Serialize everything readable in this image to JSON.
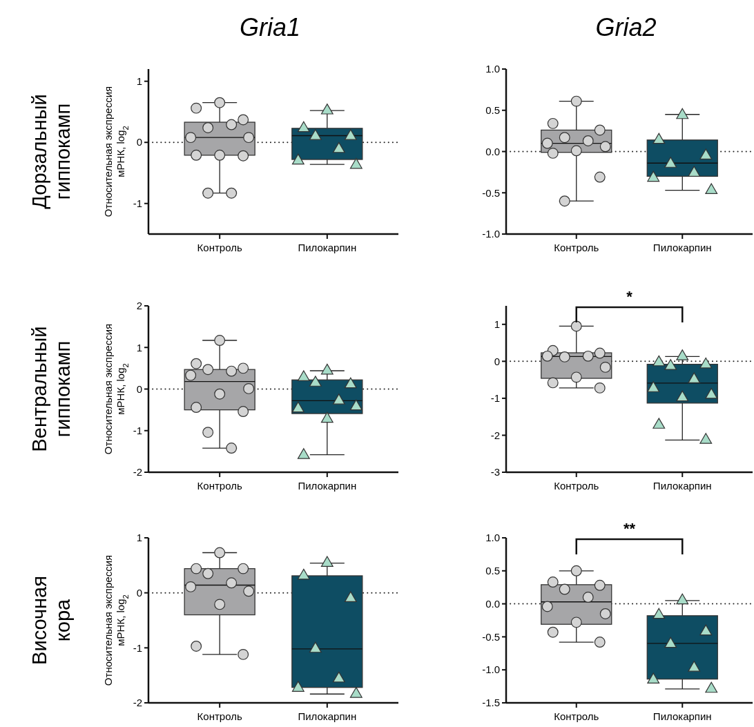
{
  "chart_data": [
    {
      "type": "box",
      "title": "Gria1",
      "ylabel": "Относительная экспрессия мРНК, log$_{2}$",
      "annotations": [
        "Дорзальный гиппокамп"
      ],
      "categories": [
        "Контроль",
        "Пилокарпин"
      ],
      "colors": [
        "#a6a6a8",
        "#0e4d63"
      ],
      "boxes": [
        {
          "low": -0.83,
          "q1": -0.21,
          "median": 0.08,
          "q3": 0.33,
          "high": 0.65
        },
        {
          "low": -0.36,
          "q1": -0.28,
          "median": 0.11,
          "q3": 0.23,
          "high": 0.52
        }
      ],
      "series": [
        {
          "type": "scatter",
          "marker": "circle",
          "color": "#d4d4d4",
          "x": [
            "Контроль",
            "Контроль",
            "Контроль",
            "Контроль",
            "Контроль",
            "Контроль",
            "Контроль",
            "Контроль",
            "Контроль",
            "Контроль",
            "Контроль",
            "Контроль"
          ],
          "values": [
            0.65,
            0.56,
            0.37,
            0.24,
            0.29,
            0.08,
            0.08,
            -0.21,
            -0.21,
            -0.22,
            -0.83,
            -0.83
          ]
        },
        {
          "type": "scatter",
          "marker": "triangle",
          "color": "#a8dcc8",
          "x": [
            "Пилокарпин",
            "Пилокарпин",
            "Пилокарпин",
            "Пилокарпин",
            "Пилокарпин",
            "Пилокарпин",
            "Пилокарпин"
          ],
          "values": [
            0.52,
            0.23,
            0.1,
            0.1,
            -0.11,
            -0.3,
            -0.37
          ]
        }
      ],
      "ylim": [
        -1.5,
        1.2
      ],
      "yticks": [
        -1,
        0,
        1
      ],
      "ref_lines": [
        {
          "axis": "y",
          "value": 0,
          "line_style": "dotted"
        }
      ]
    },
    {
      "type": "box",
      "title": "Gria2",
      "categories": [
        "Контроль",
        "Пилокарпин"
      ],
      "colors": [
        "#a6a6a8",
        "#0e4d63"
      ],
      "boxes": [
        {
          "low": -0.6,
          "q1": -0.01,
          "median": 0.1,
          "q3": 0.26,
          "high": 0.61
        },
        {
          "low": -0.47,
          "q1": -0.3,
          "median": -0.14,
          "q3": 0.14,
          "high": 0.45
        }
      ],
      "series": [
        {
          "type": "scatter",
          "marker": "circle",
          "color": "#d4d4d4",
          "x": [
            "Контроль",
            "Контроль",
            "Контроль",
            "Контроль",
            "Контроль",
            "Контроль",
            "Контроль",
            "Контроль",
            "Контроль",
            "Контроль",
            "Контроль"
          ],
          "values": [
            0.61,
            0.34,
            0.26,
            0.17,
            0.13,
            0.1,
            0.06,
            0.01,
            -0.02,
            -0.31,
            -0.6
          ]
        },
        {
          "type": "scatter",
          "marker": "triangle",
          "color": "#a8dcc8",
          "x": [
            "Пилокарпин",
            "Пилокарпин",
            "Пилокарпин",
            "Пилокарпин",
            "Пилокарпин",
            "Пилокарпин",
            "Пилокарпин"
          ],
          "values": [
            0.44,
            0.14,
            -0.05,
            -0.15,
            -0.26,
            -0.32,
            -0.47
          ]
        }
      ],
      "ylim": [
        -1,
        1
      ],
      "yticks": [
        {
          "value": -1,
          "label": "-1.0"
        },
        {
          "value": -0.5,
          "label": "-0.5"
        },
        {
          "value": 0,
          "label": "0.0"
        },
        {
          "value": 0.5,
          "label": "0.5"
        },
        {
          "value": 1,
          "label": "1.0"
        }
      ],
      "ref_lines": [
        {
          "axis": "y",
          "value": 0,
          "line_style": "dotted"
        }
      ]
    },
    {
      "type": "box",
      "ylabel": "Относительная экспрессия мРНК, log$_{2}$",
      "annotations": [
        "Вентральный гиппокамп"
      ],
      "categories": [
        "Контроль",
        "Пилокарпин"
      ],
      "colors": [
        "#a6a6a8",
        "#0e4d63"
      ],
      "boxes": [
        {
          "low": -1.42,
          "q1": -0.5,
          "median": 0.18,
          "q3": 0.47,
          "high": 1.17
        },
        {
          "low": -1.58,
          "q1": -0.59,
          "median": -0.28,
          "q3": 0.22,
          "high": 0.44
        }
      ],
      "series": [
        {
          "type": "scatter",
          "marker": "circle",
          "color": "#d4d4d4",
          "x": [
            "Контроль",
            "Контроль",
            "Контроль",
            "Контроль",
            "Контроль",
            "Контроль",
            "Контроль",
            "Контроль",
            "Контроль",
            "Контроль",
            "Контроль",
            "Контроль"
          ],
          "values": [
            1.17,
            0.61,
            0.5,
            0.47,
            0.43,
            0.33,
            0.01,
            -0.12,
            -0.44,
            -0.54,
            -1.04,
            -1.42
          ]
        },
        {
          "type": "scatter",
          "marker": "triangle",
          "color": "#a8dcc8",
          "x": [
            "Пилокарпин",
            "Пилокарпин",
            "Пилокарпин",
            "Пилокарпин",
            "Пилокарпин",
            "Пилокарпин",
            "Пилокарпин",
            "Пилокарпин",
            "Пилокарпин"
          ],
          "values": [
            0.44,
            0.28,
            0.11,
            0.15,
            -0.28,
            -0.47,
            -0.42,
            -0.72,
            -1.59
          ]
        }
      ],
      "ylim": [
        -2,
        2
      ],
      "yticks": [
        -2,
        -1,
        0,
        1,
        2
      ],
      "ref_lines": [
        {
          "axis": "y",
          "value": 0,
          "line_style": "dotted"
        }
      ]
    },
    {
      "type": "box",
      "annotations": [
        "*"
      ],
      "categories": [
        "Контроль",
        "Пилокарпин"
      ],
      "colors": [
        "#a6a6a8",
        "#0e4d63"
      ],
      "boxes": [
        {
          "low": -0.72,
          "q1": -0.46,
          "median": 0.13,
          "q3": 0.23,
          "high": 0.95
        },
        {
          "low": -2.13,
          "q1": -1.13,
          "median": -0.59,
          "q3": -0.08,
          "high": 0.13
        }
      ],
      "series": [
        {
          "type": "scatter",
          "marker": "circle",
          "color": "#d4d4d4",
          "x": [
            "Контроль",
            "Контроль",
            "Контроль",
            "Контроль",
            "Контроль",
            "Контроль",
            "Контроль",
            "Контроль",
            "Контроль",
            "Контроль"
          ],
          "values": [
            0.95,
            0.29,
            0.22,
            0.12,
            0.14,
            0.14,
            -0.16,
            -0.43,
            -0.58,
            -0.72
          ]
        },
        {
          "type": "scatter",
          "marker": "triangle",
          "color": "#a8dcc8",
          "x": [
            "Пилокарпин",
            "Пилокарпин",
            "Пилокарпин",
            "Пилокарпин",
            "Пилокарпин",
            "Пилокарпин",
            "Пилокарпин",
            "Пилокарпин",
            "Пилокарпин",
            "Пилокарпин"
          ],
          "values": [
            0.13,
            -0.03,
            -0.09,
            -0.13,
            -0.49,
            -0.73,
            -0.91,
            -0.98,
            -1.72,
            -2.13
          ]
        }
      ],
      "ylim": [
        -3,
        1.5
      ],
      "yticks": [
        -3,
        -2,
        -1,
        0,
        1
      ],
      "ref_lines": [
        {
          "axis": "y",
          "value": 0,
          "line_style": "dotted"
        }
      ]
    },
    {
      "type": "box",
      "ylabel": "Относительная экспрессия мРНК, log$_{2}$",
      "annotations": [
        "Височная кора"
      ],
      "categories": [
        "Контроль",
        "Пилокарпин"
      ],
      "colors": [
        "#a6a6a8",
        "#0e4d63"
      ],
      "boxes": [
        {
          "low": -1.12,
          "q1": -0.4,
          "median": 0.14,
          "q3": 0.44,
          "high": 0.73
        },
        {
          "low": -1.84,
          "q1": -1.72,
          "median": -1.02,
          "q3": 0.31,
          "high": 0.54
        }
      ],
      "series": [
        {
          "type": "scatter",
          "marker": "circle",
          "color": "#d4d4d4",
          "x": [
            "Контроль",
            "Контроль",
            "Контроль",
            "Контроль",
            "Контроль",
            "Контроль",
            "Контроль",
            "Контроль",
            "Контроль",
            "Контроль"
          ],
          "values": [
            0.73,
            0.44,
            0.44,
            0.35,
            0.18,
            0.11,
            0.03,
            -0.21,
            -0.97,
            -1.12
          ]
        },
        {
          "type": "scatter",
          "marker": "triangle",
          "color": "#a8dcc8",
          "x": [
            "Пилокарпин",
            "Пилокарпин",
            "Пилокарпин",
            "Пилокарпин",
            "Пилокарпин",
            "Пилокарпин",
            "Пилокарпин"
          ],
          "values": [
            0.54,
            0.31,
            -0.1,
            -1.02,
            -1.56,
            -1.73,
            -1.84
          ]
        }
      ],
      "ylim": [
        -2,
        1
      ],
      "yticks": [
        -2,
        -1,
        0,
        1
      ],
      "ref_lines": [
        {
          "axis": "y",
          "value": 0,
          "line_style": "dotted"
        }
      ]
    },
    {
      "type": "box",
      "annotations": [
        "**"
      ],
      "categories": [
        "Контроль",
        "Пилокарпин"
      ],
      "colors": [
        "#a6a6a8",
        "#0e4d63"
      ],
      "boxes": [
        {
          "low": -0.58,
          "q1": -0.31,
          "median": 0.03,
          "q3": 0.29,
          "high": 0.5
        },
        {
          "low": -1.29,
          "q1": -1.14,
          "median": -0.6,
          "q3": -0.18,
          "high": 0.05
        }
      ],
      "series": [
        {
          "type": "scatter",
          "marker": "circle",
          "color": "#d4d4d4",
          "x": [
            "Контроль",
            "Контроль",
            "Контроль",
            "Контроль",
            "Контроль",
            "Контроль",
            "Контроль",
            "Контроль",
            "Контроль",
            "Контроль"
          ],
          "values": [
            0.5,
            0.33,
            0.28,
            0.22,
            0.1,
            -0.04,
            -0.15,
            -0.28,
            -0.43,
            -0.58
          ]
        },
        {
          "type": "scatter",
          "marker": "triangle",
          "color": "#a8dcc8",
          "x": [
            "Пилокарпин",
            "Пилокарпин",
            "Пилокарпин",
            "Пилокарпин",
            "Пилокарпин",
            "Пилокарпин",
            "Пилокарпин"
          ],
          "values": [
            0.05,
            -0.17,
            -0.42,
            -0.61,
            -0.97,
            -1.15,
            -1.29
          ]
        }
      ],
      "ylim": [
        -1.5,
        1
      ],
      "yticks": [
        {
          "value": -1.5,
          "label": "-1.5"
        },
        {
          "value": -1,
          "label": "-1.0"
        },
        {
          "value": -0.5,
          "label": "-0.5"
        },
        {
          "value": 0,
          "label": "0.0"
        },
        {
          "value": 0.5,
          "label": "0.5"
        },
        {
          "value": 1,
          "label": "1.0"
        }
      ],
      "ref_lines": [
        {
          "axis": "y",
          "value": 0,
          "line_style": "dotted"
        }
      ]
    }
  ]
}
